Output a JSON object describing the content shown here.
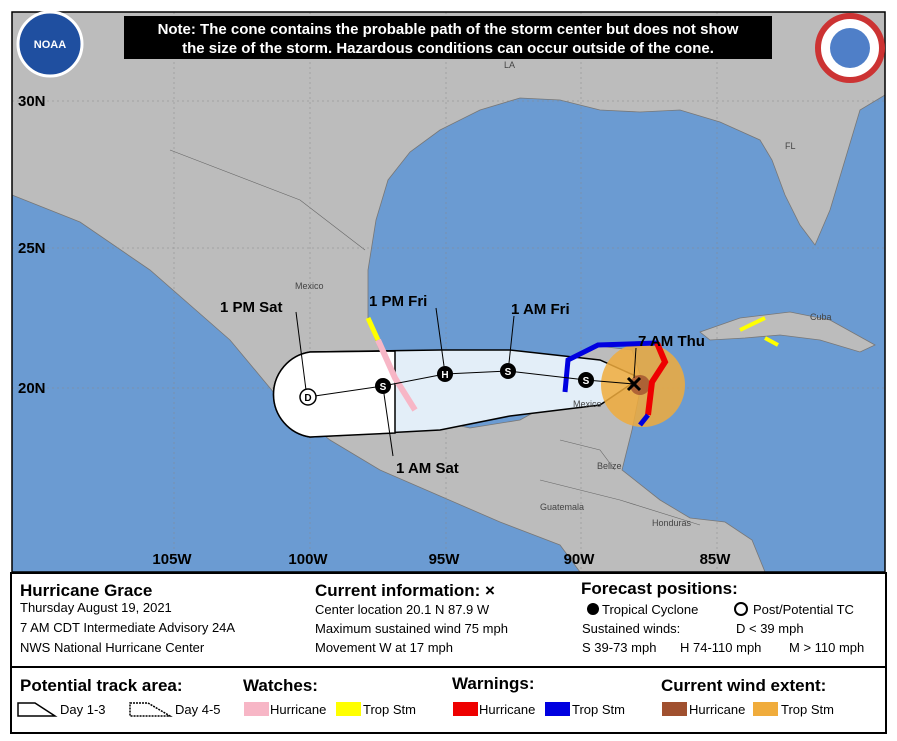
{
  "note": [
    "Note: The cone contains the probable path of the storm center but does not show",
    "the size of the storm. Hazardous conditions can occur outside of the cone."
  ],
  "logo": "NOAA",
  "map": {
    "lat_labels": [
      "30N",
      "25N",
      "20N"
    ],
    "lon_labels": [
      "105W",
      "100W",
      "95W",
      "90W",
      "85W"
    ],
    "places": [
      "LA",
      "FL",
      "Mexico",
      "Cuba",
      "Mexico",
      "Belize",
      "Guatemala",
      "Honduras"
    ],
    "track_labels": [
      "1 PM Sat",
      "1 PM Fri",
      "1 AM Fri",
      "7 AM Thu",
      "1 AM Sat"
    ],
    "track_symbols": [
      "D",
      "S",
      "H",
      "S",
      "S"
    ]
  },
  "info": {
    "name": "Hurricane Grace",
    "lines": [
      "Thursday August 19, 2021",
      "7 AM CDT Intermediate Advisory 24A",
      "NWS National Hurricane Center"
    ]
  },
  "current": {
    "title": "Current information: ×",
    "lines": [
      "Center location 20.1 N 87.9 W",
      "Maximum sustained wind 75 mph",
      "Movement W at 17 mph"
    ]
  },
  "forecast": {
    "title": "Forecast positions:",
    "cyclone": "Tropical Cyclone",
    "post": "Post/Potential TC",
    "winds": "Sustained winds:",
    "d": "D < 39 mph",
    "s": "S 39-73 mph",
    "h": "H 74-110 mph",
    "m": "M > 110 mph"
  },
  "legend": {
    "track": {
      "title": "Potential track area:",
      "day13": "Day 1-3",
      "day45": "Day 4-5"
    },
    "watches": {
      "title": "Watches:",
      "hurricane": "Hurricane",
      "storm": "Trop Stm"
    },
    "warnings": {
      "title": "Warnings:",
      "hurricane": "Hurricane",
      "storm": "Trop Stm"
    },
    "wind": {
      "title": "Current wind extent:",
      "hurricane": "Hurricane",
      "storm": "Trop Stm"
    }
  }
}
